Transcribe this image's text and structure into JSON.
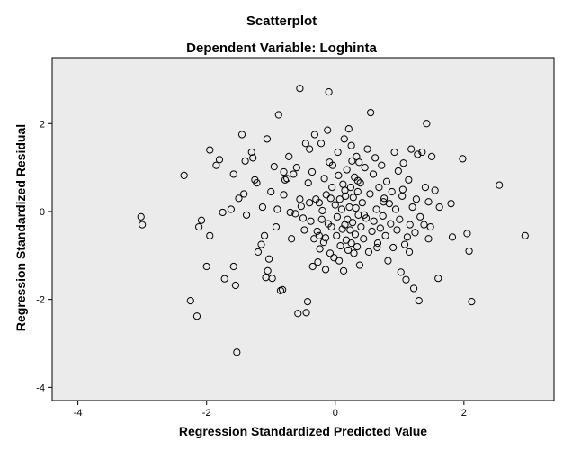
{
  "chart_data": {
    "type": "scatter",
    "title": "Scatterplot",
    "subtitle": "Dependent Variable: Loghinta",
    "xlabel": "Regression Standardized Predicted Value",
    "ylabel": "Regression Standardized Residual",
    "xlim": [
      -4.4,
      3.4
    ],
    "ylim": [
      -4.3,
      3.5
    ],
    "xticks": [
      -4,
      -2,
      0,
      2
    ],
    "yticks": [
      -4,
      -2,
      0,
      2
    ],
    "xtick_labels": [
      "-4",
      "-2",
      "0",
      "2"
    ],
    "ytick_labels": [
      "-4",
      "-2",
      "0",
      "2"
    ],
    "grid": false,
    "marker": "open-circle",
    "background": "#ebebeb",
    "points": [
      [
        -3.02,
        -0.12
      ],
      [
        -3.0,
        -0.3
      ],
      [
        -2.35,
        0.82
      ],
      [
        -2.25,
        -2.03
      ],
      [
        -2.15,
        -2.38
      ],
      [
        -2.12,
        -0.35
      ],
      [
        -2.08,
        -0.2
      ],
      [
        -2.0,
        -1.25
      ],
      [
        -1.95,
        1.4
      ],
      [
        -1.95,
        -0.55
      ],
      [
        -1.85,
        1.05
      ],
      [
        -1.8,
        1.18
      ],
      [
        -1.75,
        -0.02
      ],
      [
        -1.72,
        -1.53
      ],
      [
        -1.62,
        0.05
      ],
      [
        -1.58,
        0.85
      ],
      [
        -1.58,
        -1.25
      ],
      [
        -1.55,
        -1.68
      ],
      [
        -1.53,
        -3.2
      ],
      [
        -1.5,
        0.3
      ],
      [
        -1.45,
        1.75
      ],
      [
        -1.42,
        0.4
      ],
      [
        -1.4,
        1.15
      ],
      [
        -1.38,
        -0.08
      ],
      [
        -1.3,
        1.35
      ],
      [
        -1.28,
        1.22
      ],
      [
        -1.25,
        0.72
      ],
      [
        -1.2,
        -0.92
      ],
      [
        -1.15,
        -0.75
      ],
      [
        -1.13,
        0.1
      ],
      [
        -1.1,
        -0.55
      ],
      [
        -1.08,
        -1.5
      ],
      [
        -1.06,
        1.65
      ],
      [
        -1.05,
        -1.35
      ],
      [
        -1.03,
        -1.08
      ],
      [
        -1.0,
        0.45
      ],
      [
        -0.98,
        -1.52
      ],
      [
        -0.95,
        1.02
      ],
      [
        -0.92,
        -0.35
      ],
      [
        -0.9,
        0.05
      ],
      [
        -0.88,
        2.2
      ],
      [
        -0.85,
        -1.8
      ],
      [
        -0.82,
        -1.78
      ],
      [
        -0.8,
        0.38
      ],
      [
        -0.78,
        0.72
      ],
      [
        -0.75,
        0.75
      ],
      [
        -0.72,
        1.25
      ],
      [
        -0.68,
        -0.62
      ],
      [
        -0.65,
        0.85
      ],
      [
        -0.62,
        -0.05
      ],
      [
        -0.6,
        1.0
      ],
      [
        -0.58,
        -2.32
      ],
      [
        -0.55,
        2.8
      ],
      [
        -0.53,
        0.12
      ],
      [
        -0.5,
        -0.15
      ],
      [
        -0.48,
        -0.42
      ],
      [
        -0.46,
        1.55
      ],
      [
        -0.45,
        -2.3
      ],
      [
        -0.43,
        -2.05
      ],
      [
        -0.42,
        0.65
      ],
      [
        -0.4,
        1.42
      ],
      [
        -0.38,
        -0.22
      ],
      [
        -0.36,
        0.9
      ],
      [
        -0.35,
        -1.25
      ],
      [
        -0.33,
        -0.62
      ],
      [
        -0.32,
        1.75
      ],
      [
        -0.3,
        0.28
      ],
      [
        -0.28,
        -0.45
      ],
      [
        -0.27,
        -1.15
      ],
      [
        -0.25,
        0.2
      ],
      [
        -0.24,
        -0.85
      ],
      [
        -0.22,
        1.55
      ],
      [
        -0.21,
        -0.18
      ],
      [
        -0.2,
        0.02
      ],
      [
        -0.18,
        -0.7
      ],
      [
        -0.17,
        0.75
      ],
      [
        -0.15,
        -1.32
      ],
      [
        -0.14,
        0.38
      ],
      [
        -0.12,
        1.85
      ],
      [
        -0.11,
        -0.28
      ],
      [
        -0.1,
        2.72
      ],
      [
        -0.09,
        1.12
      ],
      [
        -0.08,
        -0.95
      ],
      [
        -0.07,
        0.3
      ],
      [
        -0.06,
        -0.35
      ],
      [
        -0.05,
        0.55
      ],
      [
        -0.04,
        1.05
      ],
      [
        -0.02,
        -1.05
      ],
      [
        0.0,
        0.15
      ],
      [
        0.02,
        -0.55
      ],
      [
        0.03,
        -0.12
      ],
      [
        0.04,
        1.35
      ],
      [
        0.05,
        0.82
      ],
      [
        0.06,
        -1.12
      ],
      [
        0.07,
        0.28
      ],
      [
        0.08,
        -0.78
      ],
      [
        0.1,
        0.05
      ],
      [
        0.11,
        -0.4
      ],
      [
        0.12,
        0.62
      ],
      [
        0.13,
        -1.35
      ],
      [
        0.14,
        1.65
      ],
      [
        0.15,
        -0.3
      ],
      [
        0.16,
        0.35
      ],
      [
        0.17,
        -0.65
      ],
      [
        0.18,
        0.95
      ],
      [
        0.19,
        -0.18
      ],
      [
        0.2,
        -0.88
      ],
      [
        0.21,
        1.88
      ],
      [
        0.22,
        0.1
      ],
      [
        0.23,
        -0.42
      ],
      [
        0.24,
        0.55
      ],
      [
        0.25,
        -0.72
      ],
      [
        0.26,
        1.15
      ],
      [
        0.27,
        -0.25
      ],
      [
        0.28,
        0.32
      ],
      [
        0.29,
        -0.95
      ],
      [
        0.3,
        0.78
      ],
      [
        0.31,
        -0.52
      ],
      [
        0.32,
        0.08
      ],
      [
        0.33,
        1.25
      ],
      [
        0.34,
        -0.8
      ],
      [
        0.35,
        0.45
      ],
      [
        0.36,
        -0.08
      ],
      [
        0.37,
        1.12
      ],
      [
        0.38,
        -1.22
      ],
      [
        0.39,
        0.65
      ],
      [
        0.4,
        -0.35
      ],
      [
        0.42,
        0.2
      ],
      [
        0.44,
        -0.62
      ],
      [
        0.46,
        1.0
      ],
      [
        0.48,
        -0.15
      ],
      [
        0.5,
        1.42
      ],
      [
        0.52,
        -0.92
      ],
      [
        0.54,
        0.4
      ],
      [
        0.55,
        2.25
      ],
      [
        0.57,
        -0.45
      ],
      [
        0.59,
        0.85
      ],
      [
        0.6,
        -0.22
      ],
      [
        0.62,
        1.22
      ],
      [
        0.64,
        0.05
      ],
      [
        0.66,
        -0.72
      ],
      [
        0.68,
        0.55
      ],
      [
        0.7,
        -0.38
      ],
      [
        0.72,
        1.05
      ],
      [
        0.74,
        -0.1
      ],
      [
        0.76,
        0.3
      ],
      [
        0.78,
        -0.55
      ],
      [
        0.8,
        0.68
      ],
      [
        0.82,
        -1.12
      ],
      [
        0.84,
        0.18
      ],
      [
        0.86,
        -0.28
      ],
      [
        0.88,
        0.45
      ],
      [
        0.9,
        -0.82
      ],
      [
        0.92,
        1.35
      ],
      [
        0.94,
        0.05
      ],
      [
        0.96,
        -0.42
      ],
      [
        0.98,
        0.92
      ],
      [
        1.0,
        -0.18
      ],
      [
        1.02,
        -1.38
      ],
      [
        1.04,
        0.35
      ],
      [
        1.06,
        1.1
      ],
      [
        1.08,
        -0.75
      ],
      [
        1.1,
        -1.55
      ],
      [
        1.12,
        -0.58
      ],
      [
        1.14,
        0.72
      ],
      [
        1.16,
        -0.3
      ],
      [
        1.18,
        1.42
      ],
      [
        1.2,
        0.1
      ],
      [
        1.22,
        -1.75
      ],
      [
        1.24,
        -0.48
      ],
      [
        1.26,
        0.28
      ],
      [
        1.28,
        1.3
      ],
      [
        1.3,
        -2.03
      ],
      [
        1.32,
        -0.12
      ],
      [
        1.35,
        1.35
      ],
      [
        1.38,
        -0.3
      ],
      [
        1.4,
        0.55
      ],
      [
        1.42,
        2.0
      ],
      [
        1.45,
        0.22
      ],
      [
        1.48,
        -0.35
      ],
      [
        1.5,
        1.25
      ],
      [
        1.55,
        0.48
      ],
      [
        1.6,
        -1.52
      ],
      [
        1.62,
        0.1
      ],
      [
        1.8,
        0.18
      ],
      [
        1.82,
        -0.58
      ],
      [
        1.98,
        1.2
      ],
      [
        2.05,
        -0.5
      ],
      [
        2.08,
        -0.9
      ],
      [
        2.12,
        -2.05
      ],
      [
        2.55,
        0.6
      ],
      [
        2.95,
        -0.55
      ],
      [
        1.45,
        -0.62
      ],
      [
        -0.15,
        -0.6
      ],
      [
        0.65,
        -0.82
      ],
      [
        -0.7,
        -0.02
      ],
      [
        0.35,
        0.7
      ],
      [
        -0.55,
        0.28
      ],
      [
        0.15,
        0.48
      ],
      [
        0.75,
        0.22
      ],
      [
        -0.25,
        -0.55
      ],
      [
        0.45,
        -0.08
      ],
      [
        -0.4,
        0.2
      ],
      [
        1.05,
        0.5
      ],
      [
        -0.8,
        0.9
      ],
      [
        0.25,
        1.5
      ],
      [
        1.15,
        -0.92
      ],
      [
        -1.22,
        0.65
      ]
    ]
  }
}
